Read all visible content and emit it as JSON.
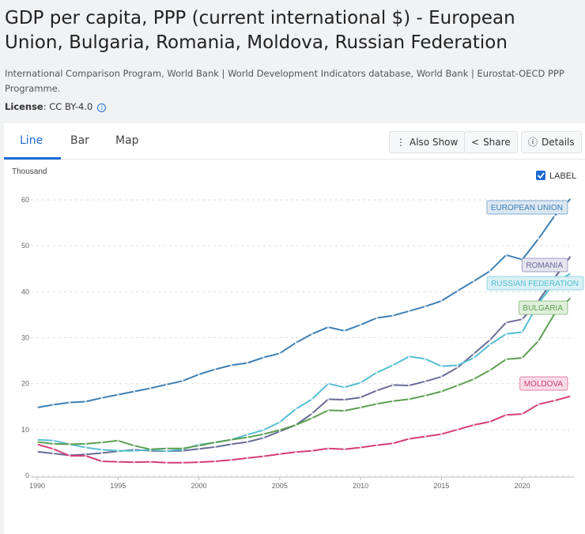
{
  "header": {
    "title": "GDP per capita, PPP (current international $) - European Union, Bulgaria, Romania, Moldova, Russian Federation",
    "source": "International Comparison Program, World Bank | World Development Indicators database, World Bank | Eurostat-OECD PPP Programme.",
    "license_label": "License",
    "license_value": ": CC BY-4.0",
    "info_icon": "i"
  },
  "tabs": {
    "line": "Line",
    "bar": "Bar",
    "map": "Map"
  },
  "toolbar": {
    "also_show": "Also Show",
    "share": "Share",
    "details": "Details"
  },
  "label_toggle": {
    "text": "LABEL",
    "checked": true
  },
  "chart_data": {
    "type": "line",
    "ylabel": "Thousand",
    "ylim": [
      0,
      60
    ],
    "yticks": [
      0,
      10,
      20,
      30,
      40,
      50,
      60
    ],
    "xlim": [
      1990,
      2023
    ],
    "xticks": [
      1990,
      1995,
      2000,
      2005,
      2010,
      2015,
      2020
    ],
    "grid": true,
    "x": [
      1990,
      1991,
      1992,
      1993,
      1994,
      1995,
      1996,
      1997,
      1998,
      1999,
      2000,
      2001,
      2002,
      2003,
      2004,
      2005,
      2006,
      2007,
      2008,
      2009,
      2010,
      2011,
      2012,
      2013,
      2014,
      2015,
      2016,
      2017,
      2018,
      2019,
      2020,
      2021,
      2022,
      2023
    ],
    "series": [
      {
        "name": "EUROPEAN UNION",
        "color": "#3f7fb3",
        "label_bg": "#dbe8f3",
        "values": [
          14.8,
          15.4,
          15.9,
          16.1,
          16.9,
          17.6,
          18.3,
          19.0,
          19.8,
          20.6,
          22.0,
          23.1,
          24.0,
          24.5,
          25.7,
          26.6,
          28.9,
          30.8,
          32.3,
          31.5,
          32.8,
          34.3,
          34.8,
          35.8,
          36.8,
          38.0,
          40.2,
          42.3,
          44.5,
          48.0,
          47.0,
          51.5,
          56.5,
          60.3
        ]
      },
      {
        "name": "ROMANIA",
        "color": "#6a6b97",
        "label_bg": "#e6e4f0",
        "values": [
          5.2,
          4.8,
          4.4,
          4.6,
          4.9,
          5.3,
          5.6,
          5.4,
          5.3,
          5.4,
          5.8,
          6.2,
          6.8,
          7.3,
          8.2,
          9.6,
          11.0,
          13.5,
          16.6,
          16.5,
          17.0,
          18.5,
          19.7,
          19.6,
          20.5,
          21.5,
          23.5,
          26.5,
          29.5,
          33.3,
          34.0,
          38.0,
          43.0,
          47.8
        ]
      },
      {
        "name": "RUSSIAN FEDERATION",
        "color": "#55bfd1",
        "label_bg": "#d9f0f4",
        "values": [
          7.8,
          7.6,
          6.8,
          6.1,
          5.6,
          5.4,
          5.4,
          5.6,
          5.3,
          5.7,
          6.7,
          7.2,
          7.8,
          8.9,
          9.9,
          11.6,
          14.5,
          16.6,
          20.0,
          19.2,
          20.2,
          22.4,
          24.0,
          25.9,
          25.4,
          23.8,
          24.0,
          25.6,
          28.5,
          30.8,
          31.2,
          37.5,
          42.0,
          44.0
        ]
      },
      {
        "name": "BULGARIA",
        "color": "#5d9e52",
        "label_bg": "#dff0da",
        "values": [
          7.3,
          6.9,
          6.8,
          6.9,
          7.2,
          7.6,
          6.5,
          5.7,
          5.9,
          5.9,
          6.5,
          7.2,
          7.8,
          8.3,
          9.0,
          9.9,
          11.0,
          12.5,
          14.2,
          14.1,
          14.8,
          15.6,
          16.2,
          16.6,
          17.4,
          18.3,
          19.6,
          21.0,
          22.9,
          25.3,
          25.6,
          29.3,
          35.2,
          38.7
        ]
      },
      {
        "name": "MOLDOVA",
        "color": "#d33e78",
        "label_bg": "#f8dce6",
        "values": [
          6.8,
          5.8,
          4.3,
          4.3,
          3.1,
          3.0,
          2.9,
          3.0,
          2.8,
          2.8,
          2.9,
          3.1,
          3.4,
          3.8,
          4.2,
          4.7,
          5.1,
          5.4,
          5.9,
          5.7,
          6.1,
          6.6,
          7.0,
          8.0,
          8.5,
          9.0,
          10.0,
          11.0,
          11.7,
          13.2,
          13.4,
          15.5,
          16.3,
          17.3
        ]
      }
    ]
  }
}
